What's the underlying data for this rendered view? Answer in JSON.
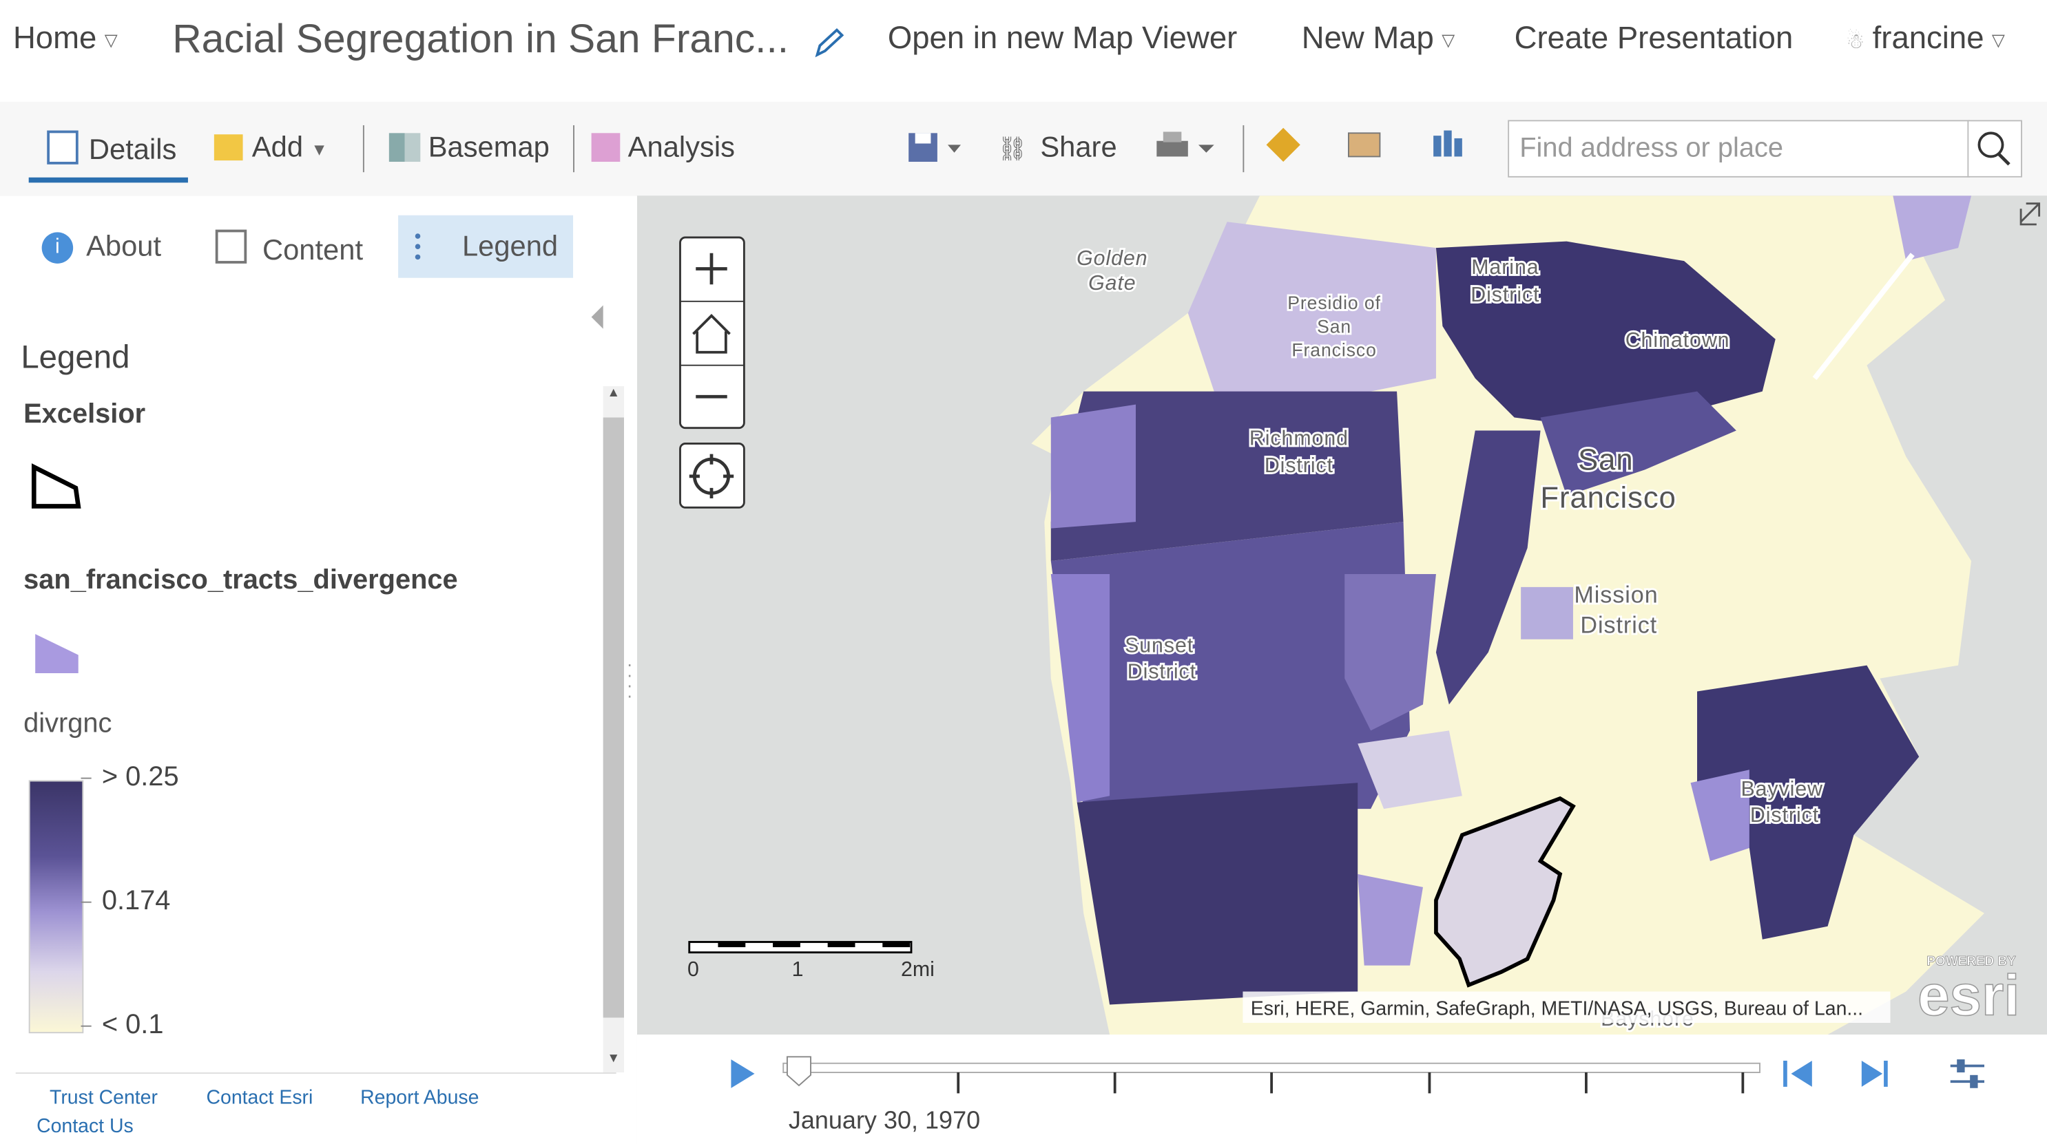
{
  "header": {
    "home": "Home",
    "title": "Racial Segregation in San Franc...",
    "open_viewer": "Open in new Map Viewer",
    "new_map": "New Map",
    "create_presentation": "Create Presentation",
    "user": "francine"
  },
  "toolbar": {
    "details": "Details",
    "add": "Add",
    "basemap": "Basemap",
    "analysis": "Analysis",
    "share": "Share",
    "search_placeholder": "Find address or place"
  },
  "side_panel": {
    "tabs": [
      "About",
      "Content",
      "Legend"
    ],
    "heading": "Legend",
    "layers": [
      {
        "name": "Excelsior"
      },
      {
        "name": "san_francisco_tracts_divergence",
        "field": "divrgnc",
        "stops": [
          "> 0.25",
          "0.174",
          "< 0.1"
        ]
      }
    ],
    "footer_links": [
      "Trust Center",
      "Contact Esri",
      "Report Abuse",
      "Contact Us"
    ]
  },
  "map": {
    "labels": [
      [
        "Golden",
        "Gate"
      ],
      [
        "Presidio of",
        "San",
        "Francisco"
      ],
      [
        "Marina",
        "District"
      ],
      [
        "Chinatown"
      ],
      [
        "Richmond",
        "District"
      ],
      [
        "San",
        "Francisco"
      ],
      [
        "Mission",
        "District"
      ],
      [
        "Sunset",
        "District"
      ],
      [
        "Bayview",
        "District"
      ],
      [
        "Bayshore"
      ]
    ],
    "scale_bar": [
      "0",
      "1",
      "2mi"
    ],
    "attribution": "Esri, HERE, Garmin, SafeGraph, METI/NASA, USGS, Bureau of Lan...",
    "logo": {
      "powered_by": "POWERED BY",
      "brand": "esri"
    }
  },
  "time_slider": {
    "current": "January 30, 1970"
  }
}
